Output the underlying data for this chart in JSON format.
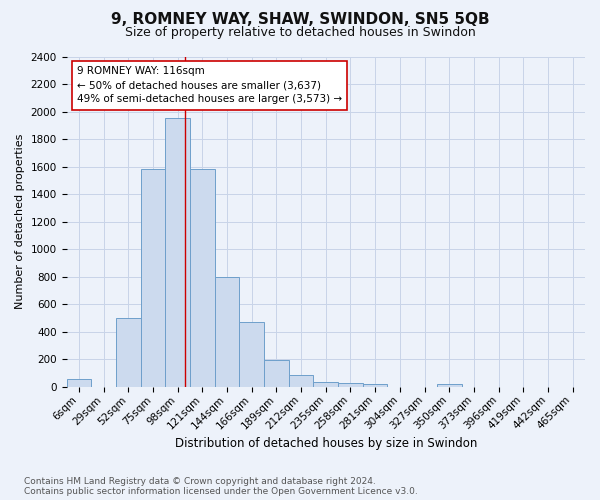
{
  "title1": "9, ROMNEY WAY, SHAW, SWINDON, SN5 5QB",
  "title2": "Size of property relative to detached houses in Swindon",
  "xlabel": "Distribution of detached houses by size in Swindon",
  "ylabel": "Number of detached properties",
  "categories": [
    "6sqm",
    "29sqm",
    "52sqm",
    "75sqm",
    "98sqm",
    "121sqm",
    "144sqm",
    "166sqm",
    "189sqm",
    "212sqm",
    "235sqm",
    "258sqm",
    "281sqm",
    "304sqm",
    "327sqm",
    "350sqm",
    "373sqm",
    "396sqm",
    "419sqm",
    "442sqm",
    "465sqm"
  ],
  "values": [
    55,
    0,
    500,
    1580,
    1950,
    1580,
    800,
    470,
    195,
    85,
    35,
    30,
    20,
    0,
    0,
    20,
    0,
    0,
    0,
    0,
    0
  ],
  "bar_color": "#ccdaee",
  "bar_edge_color": "#6e9fcb",
  "grid_color": "#c8d4e8",
  "annotation_line_color": "#cc0000",
  "annotation_box_text": "9 ROMNEY WAY: 116sqm\n← 50% of detached houses are smaller (3,637)\n49% of semi-detached houses are larger (3,573) →",
  "annotation_box_color": "white",
  "annotation_box_edge_color": "#cc0000",
  "footer1": "Contains HM Land Registry data © Crown copyright and database right 2024.",
  "footer2": "Contains public sector information licensed under the Open Government Licence v3.0.",
  "ylim": [
    0,
    2400
  ],
  "yticks": [
    0,
    200,
    400,
    600,
    800,
    1000,
    1200,
    1400,
    1600,
    1800,
    2000,
    2200,
    2400
  ],
  "title1_fontsize": 11,
  "title2_fontsize": 9,
  "xlabel_fontsize": 8.5,
  "ylabel_fontsize": 8,
  "tick_fontsize": 7.5,
  "footer_fontsize": 6.5,
  "annotation_fontsize": 7.5,
  "bg_color": "#edf2fa",
  "line_x_index": 4.78
}
